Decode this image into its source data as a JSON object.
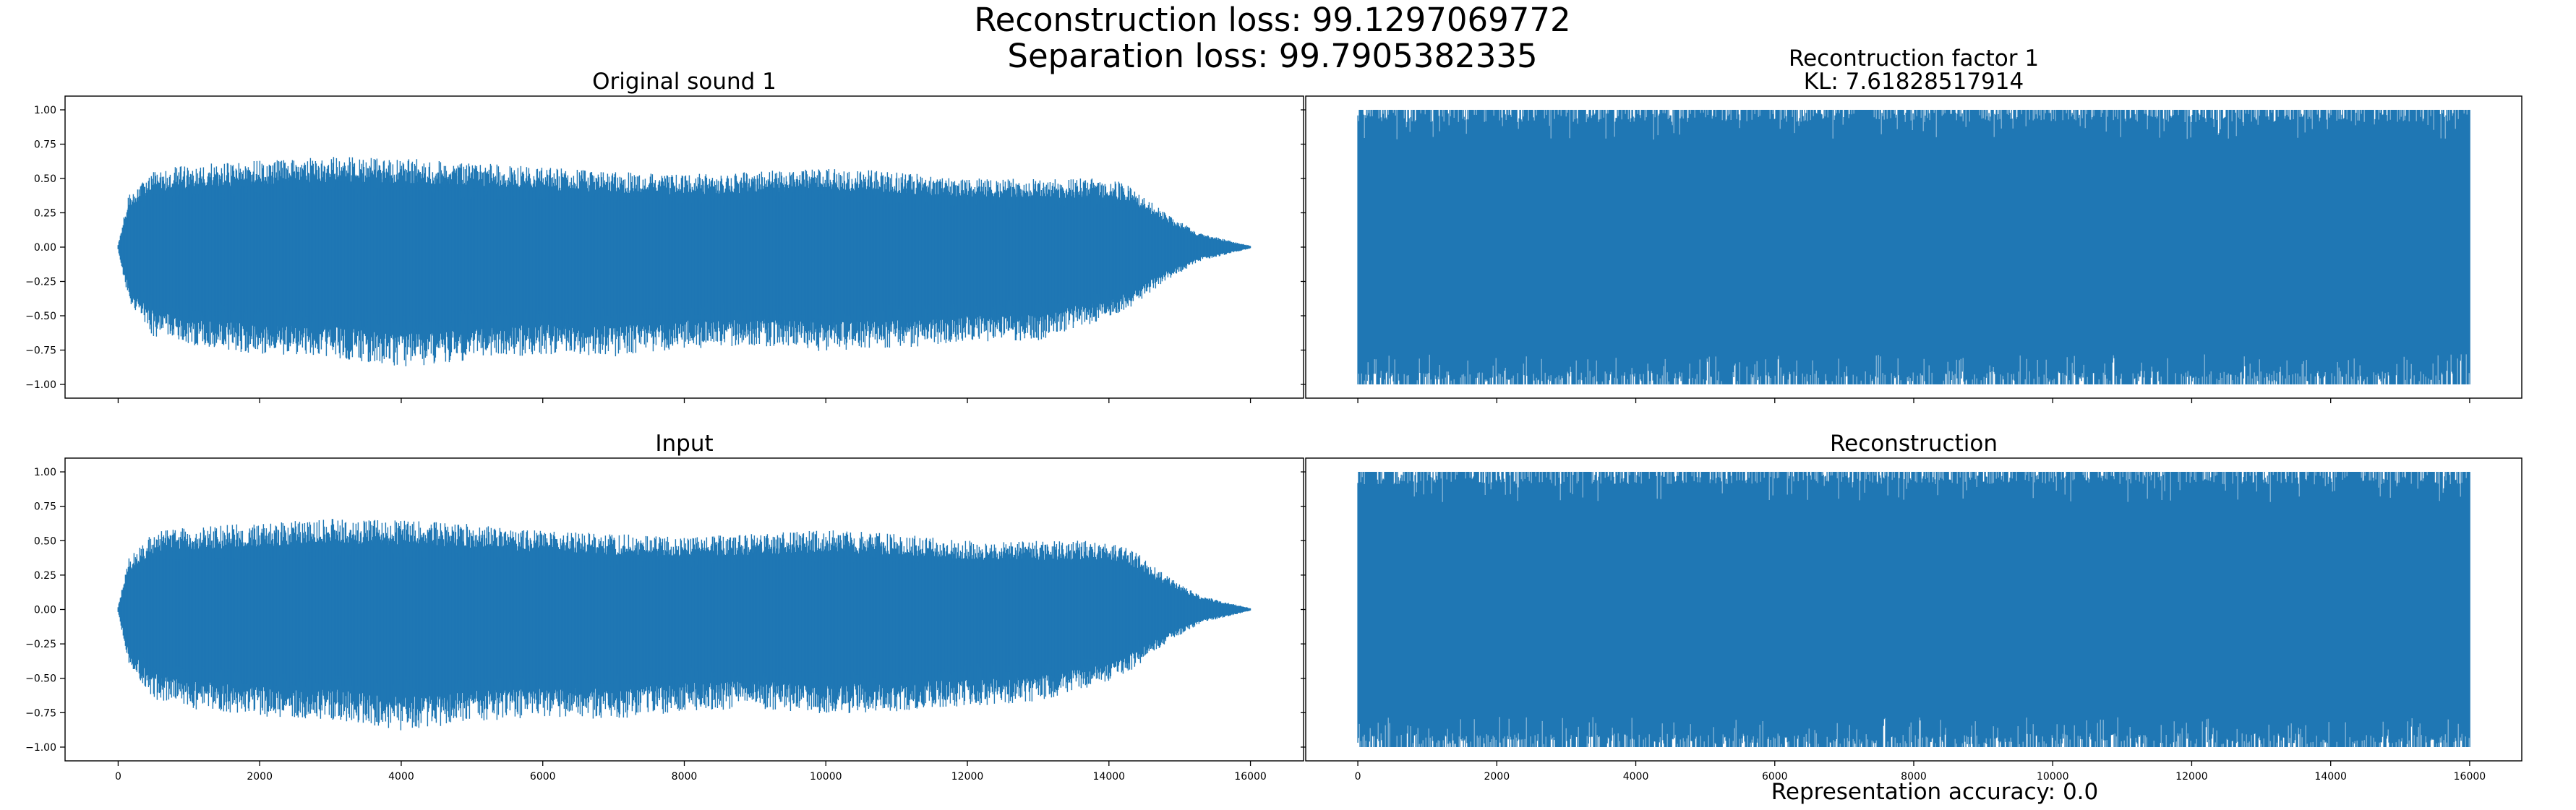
{
  "suptitle": {
    "line1": "Reconstruction loss: 99.1297069772",
    "line2": "Separation loss: 99.7905382335"
  },
  "footer": {
    "text": "Representation accuracy: 0.0"
  },
  "colors": {
    "series": "#1f77b4",
    "axes": "#000000",
    "background": "#ffffff"
  },
  "chart_data": [
    {
      "type": "line",
      "position": "top-left",
      "title": "Original sound 1",
      "subtitle": "",
      "xlim": [
        -750,
        16750
      ],
      "ylim": [
        -1.1,
        1.1
      ],
      "x_ticks": [
        0,
        2000,
        4000,
        6000,
        8000,
        10000,
        12000,
        14000,
        16000
      ],
      "x_tick_labels_visible": false,
      "y_ticks": [
        -1.0,
        -0.75,
        -0.5,
        -0.25,
        0.0,
        0.25,
        0.5,
        0.75,
        1.0
      ],
      "y_tick_labels": [
        "−1.00",
        "−0.75",
        "−0.50",
        "−0.25",
        "0.00",
        "0.25",
        "0.50",
        "0.75",
        "1.00"
      ],
      "y_tick_labels_visible": true,
      "series": [
        {
          "waveform": "decaying",
          "n_samples": 16000,
          "envelope_upper": [
            [
              0,
              0.02
            ],
            [
              150,
              0.38
            ],
            [
              500,
              0.56
            ],
            [
              1000,
              0.6
            ],
            [
              2000,
              0.63
            ],
            [
              3000,
              0.66
            ],
            [
              4000,
              0.65
            ],
            [
              5000,
              0.62
            ],
            [
              6000,
              0.58
            ],
            [
              7000,
              0.55
            ],
            [
              8000,
              0.53
            ],
            [
              9000,
              0.55
            ],
            [
              10000,
              0.58
            ],
            [
              11000,
              0.55
            ],
            [
              12000,
              0.5
            ],
            [
              13000,
              0.5
            ],
            [
              14000,
              0.5
            ],
            [
              14300,
              0.45
            ],
            [
              14800,
              0.25
            ],
            [
              15300,
              0.1
            ],
            [
              16000,
              0.01
            ]
          ],
          "envelope_lower": [
            [
              0,
              -0.02
            ],
            [
              150,
              -0.4
            ],
            [
              500,
              -0.65
            ],
            [
              1000,
              -0.72
            ],
            [
              2000,
              -0.78
            ],
            [
              3000,
              -0.8
            ],
            [
              4000,
              -0.88
            ],
            [
              5000,
              -0.82
            ],
            [
              6000,
              -0.78
            ],
            [
              7000,
              -0.8
            ],
            [
              8000,
              -0.74
            ],
            [
              9000,
              -0.72
            ],
            [
              10000,
              -0.76
            ],
            [
              11000,
              -0.74
            ],
            [
              12000,
              -0.7
            ],
            [
              13000,
              -0.68
            ],
            [
              14000,
              -0.52
            ],
            [
              14300,
              -0.45
            ],
            [
              14800,
              -0.25
            ],
            [
              15300,
              -0.1
            ],
            [
              16000,
              -0.01
            ]
          ]
        }
      ]
    },
    {
      "type": "line",
      "position": "top-right",
      "title": "Recontruction factor 1",
      "subtitle": "KL: 7.61828517914",
      "xlim": [
        -750,
        16750
      ],
      "ylim": [
        -1.1,
        1.1
      ],
      "x_ticks": [
        0,
        2000,
        4000,
        6000,
        8000,
        10000,
        12000,
        14000,
        16000
      ],
      "x_tick_labels_visible": false,
      "y_ticks": [
        -1.0,
        -0.75,
        -0.5,
        -0.25,
        0.0,
        0.25,
        0.5,
        0.75,
        1.0
      ],
      "y_tick_labels_visible": false,
      "series": [
        {
          "waveform": "saturated-noise",
          "n_samples": 16000,
          "range": [
            -1.0,
            1.0
          ]
        }
      ]
    },
    {
      "type": "line",
      "position": "bottom-left",
      "title": "Input",
      "subtitle": "",
      "xlim": [
        -750,
        16750
      ],
      "ylim": [
        -1.1,
        1.1
      ],
      "x_ticks": [
        0,
        2000,
        4000,
        6000,
        8000,
        10000,
        12000,
        14000,
        16000
      ],
      "x_tick_labels": [
        "0",
        "2000",
        "4000",
        "6000",
        "8000",
        "10000",
        "12000",
        "14000",
        "16000"
      ],
      "x_tick_labels_visible": true,
      "y_ticks": [
        -1.0,
        -0.75,
        -0.5,
        -0.25,
        0.0,
        0.25,
        0.5,
        0.75,
        1.0
      ],
      "y_tick_labels": [
        "−1.00",
        "−0.75",
        "−0.50",
        "−0.25",
        "0.00",
        "0.25",
        "0.50",
        "0.75",
        "1.00"
      ],
      "y_tick_labels_visible": true,
      "series": [
        {
          "waveform": "decaying",
          "n_samples": 16000,
          "envelope_upper": [
            [
              0,
              0.02
            ],
            [
              150,
              0.38
            ],
            [
              500,
              0.56
            ],
            [
              1000,
              0.6
            ],
            [
              2000,
              0.63
            ],
            [
              3000,
              0.66
            ],
            [
              4000,
              0.65
            ],
            [
              5000,
              0.62
            ],
            [
              6000,
              0.58
            ],
            [
              7000,
              0.55
            ],
            [
              8000,
              0.53
            ],
            [
              9000,
              0.55
            ],
            [
              10000,
              0.58
            ],
            [
              11000,
              0.55
            ],
            [
              12000,
              0.5
            ],
            [
              13000,
              0.5
            ],
            [
              14000,
              0.5
            ],
            [
              14300,
              0.45
            ],
            [
              14800,
              0.25
            ],
            [
              15300,
              0.1
            ],
            [
              16000,
              0.01
            ]
          ],
          "envelope_lower": [
            [
              0,
              -0.02
            ],
            [
              150,
              -0.4
            ],
            [
              500,
              -0.65
            ],
            [
              1000,
              -0.72
            ],
            [
              2000,
              -0.78
            ],
            [
              3000,
              -0.8
            ],
            [
              4000,
              -0.88
            ],
            [
              5000,
              -0.82
            ],
            [
              6000,
              -0.78
            ],
            [
              7000,
              -0.8
            ],
            [
              8000,
              -0.74
            ],
            [
              9000,
              -0.72
            ],
            [
              10000,
              -0.76
            ],
            [
              11000,
              -0.74
            ],
            [
              12000,
              -0.7
            ],
            [
              13000,
              -0.68
            ],
            [
              14000,
              -0.52
            ],
            [
              14300,
              -0.45
            ],
            [
              14800,
              -0.25
            ],
            [
              15300,
              -0.1
            ],
            [
              16000,
              -0.01
            ]
          ]
        }
      ]
    },
    {
      "type": "line",
      "position": "bottom-right",
      "title": "Reconstruction",
      "subtitle": "",
      "xlim": [
        -750,
        16750
      ],
      "ylim": [
        -1.1,
        1.1
      ],
      "x_ticks": [
        0,
        2000,
        4000,
        6000,
        8000,
        10000,
        12000,
        14000,
        16000
      ],
      "x_tick_labels": [
        "0",
        "2000",
        "4000",
        "6000",
        "8000",
        "10000",
        "12000",
        "14000",
        "16000"
      ],
      "x_tick_labels_visible": true,
      "y_ticks": [
        -1.0,
        -0.75,
        -0.5,
        -0.25,
        0.0,
        0.25,
        0.5,
        0.75,
        1.0
      ],
      "y_tick_labels_visible": false,
      "series": [
        {
          "waveform": "saturated-noise",
          "n_samples": 16000,
          "range": [
            -1.0,
            1.0
          ]
        }
      ]
    }
  ]
}
